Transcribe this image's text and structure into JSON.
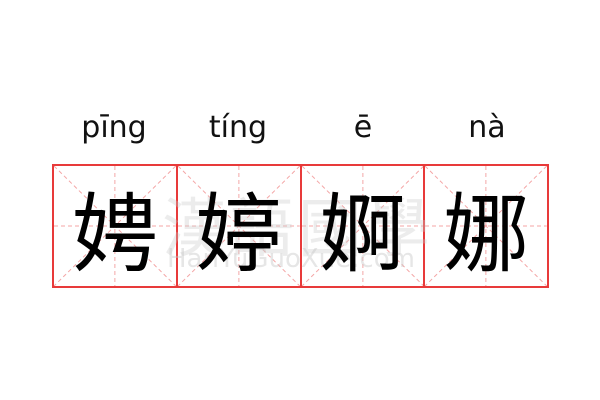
{
  "entries": [
    {
      "pinyin": "pīng",
      "char": "娉"
    },
    {
      "pinyin": "tíng",
      "char": "婷"
    },
    {
      "pinyin": "ē",
      "char": "婀"
    },
    {
      "pinyin": "nà",
      "char": "娜"
    }
  ],
  "watermark": {
    "cn": "漢語國學",
    "en": "HanYuGuoXue.com"
  },
  "colors": {
    "grid_border": "#e83a3a",
    "guide_lines": "#f4a6a6"
  }
}
